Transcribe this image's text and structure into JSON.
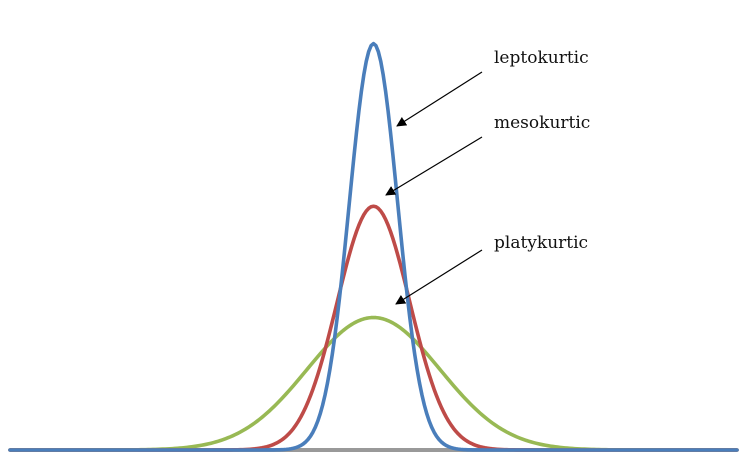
{
  "chart_data": {
    "type": "line",
    "title": "",
    "xlabel": "",
    "ylabel": "",
    "x_range": [
      -6,
      6
    ],
    "y_range": [
      0,
      1.05
    ],
    "grid": false,
    "legend": "none",
    "baseline_color": "#999999",
    "series": [
      {
        "name": "leptokurtic",
        "sd": 0.4,
        "peak": 0.997,
        "color": "#4a7ebb"
      },
      {
        "name": "mesokurtic",
        "sd": 0.6,
        "peak": 0.598,
        "color": "#be4b48"
      },
      {
        "name": "platykurtic",
        "sd": 1.1,
        "peak": 0.325,
        "color": "#98b954"
      }
    ],
    "annotations": [
      {
        "text": "leptokurtic",
        "series": "leptokurtic",
        "color": "#000000"
      },
      {
        "text": "mesokurtic",
        "series": "mesokurtic",
        "color": "#000000"
      },
      {
        "text": "platykurtic",
        "series": "platykurtic",
        "color": "#000000"
      }
    ]
  }
}
